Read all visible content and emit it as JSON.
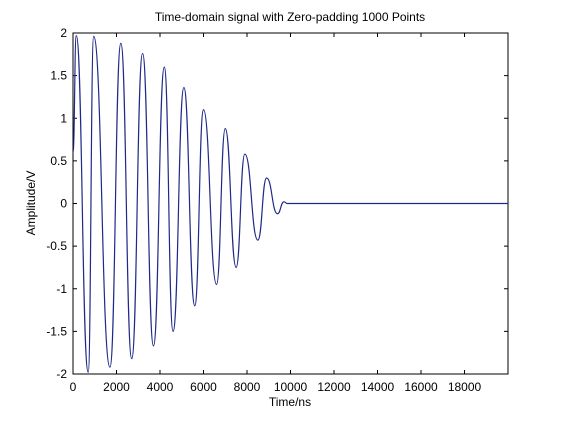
{
  "chart_data": {
    "type": "line",
    "title": "Time-domain signal with Zero-padding 1000 Points",
    "xlabel": "Time/ns",
    "ylabel": "Amplitude/V",
    "xlim": [
      0,
      20000
    ],
    "ylim": [
      -2,
      2
    ],
    "x_ticks": [
      0,
      2000,
      4000,
      6000,
      8000,
      10000,
      12000,
      14000,
      16000,
      18000
    ],
    "y_ticks": [
      2,
      1.5,
      1,
      0.5,
      0,
      -0.5,
      -1,
      -1.5,
      -2
    ],
    "grid": false,
    "legend": "none",
    "series": [
      {
        "color": "#1f2a88",
        "description_values": {
          "x": [
            0,
            150,
            700,
            950,
            1700,
            2200,
            2700,
            3200,
            3700,
            4200,
            4600,
            5100,
            5600,
            6000,
            6600,
            7000,
            7500,
            7900,
            8500,
            8900,
            9400,
            9700,
            9850,
            10000,
            20000
          ],
          "y": [
            0.6,
            1.97,
            -1.98,
            1.96,
            -1.92,
            1.88,
            -1.82,
            1.76,
            -1.67,
            1.6,
            -1.5,
            1.36,
            -1.2,
            1.1,
            -0.95,
            0.88,
            -0.75,
            0.58,
            -0.43,
            0.3,
            -0.12,
            0.02,
            0.0,
            0.0,
            0.0
          ]
        }
      }
    ]
  }
}
